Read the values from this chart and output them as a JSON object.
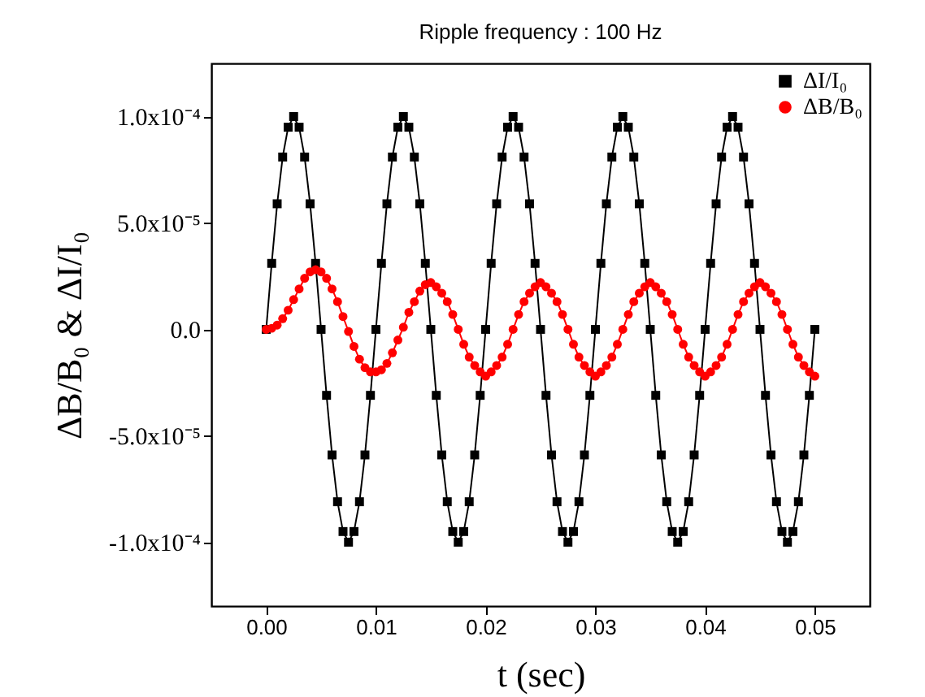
{
  "chart_data": {
    "type": "line",
    "title": "Ripple frequency : 100 Hz",
    "xlabel": "t (sec)",
    "ylabel": "ΔB/B₀ & ΔI/I₀",
    "x": [
      0,
      0.0005,
      0.001,
      0.0015,
      0.002,
      0.0025,
      0.003,
      0.0035,
      0.004,
      0.0045,
      0.005,
      0.0055,
      0.006,
      0.0065,
      0.007,
      0.0075,
      0.008,
      0.0085,
      0.009,
      0.0095,
      0.01,
      0.0105,
      0.011,
      0.0115,
      0.012,
      0.0125,
      0.013,
      0.0135,
      0.014,
      0.0145,
      0.015,
      0.0155,
      0.016,
      0.0165,
      0.017,
      0.0175,
      0.018,
      0.0185,
      0.019,
      0.0195,
      0.02,
      0.0205,
      0.021,
      0.0215,
      0.022,
      0.0225,
      0.023,
      0.0235,
      0.024,
      0.0245,
      0.025,
      0.0255,
      0.026,
      0.0265,
      0.027,
      0.0275,
      0.028,
      0.0285,
      0.029,
      0.0295,
      0.03,
      0.0305,
      0.031,
      0.0315,
      0.032,
      0.0325,
      0.033,
      0.0335,
      0.034,
      0.0345,
      0.035,
      0.0355,
      0.036,
      0.0365,
      0.037,
      0.0375,
      0.038,
      0.0385,
      0.039,
      0.0395,
      0.04,
      0.0405,
      0.041,
      0.0415,
      0.042,
      0.0425,
      0.043,
      0.0435,
      0.044,
      0.0445,
      0.045,
      0.0455,
      0.046,
      0.0465,
      0.047,
      0.0475,
      0.048,
      0.0485,
      0.049,
      0.0495,
      0.05
    ],
    "series": [
      {
        "name": "ΔI/I₀",
        "color": "#000000",
        "marker": "square",
        "values": [
          0,
          3.1e-05,
          5.9e-05,
          8.1e-05,
          9.5e-05,
          0.0001,
          9.5e-05,
          8.1e-05,
          5.9e-05,
          3.1e-05,
          0,
          -3.1e-05,
          -5.9e-05,
          -8.1e-05,
          -9.5e-05,
          -0.0001,
          -9.5e-05,
          -8.1e-05,
          -5.9e-05,
          -3.1e-05,
          0,
          3.1e-05,
          5.9e-05,
          8.1e-05,
          9.5e-05,
          0.0001,
          9.5e-05,
          8.1e-05,
          5.9e-05,
          3.1e-05,
          0,
          -3.1e-05,
          -5.9e-05,
          -8.1e-05,
          -9.5e-05,
          -0.0001,
          -9.5e-05,
          -8.1e-05,
          -5.9e-05,
          -3.1e-05,
          0,
          3.1e-05,
          5.9e-05,
          8.1e-05,
          9.5e-05,
          0.0001,
          9.5e-05,
          8.1e-05,
          5.9e-05,
          3.1e-05,
          0,
          -3.1e-05,
          -5.9e-05,
          -8.1e-05,
          -9.5e-05,
          -0.0001,
          -9.5e-05,
          -8.1e-05,
          -5.9e-05,
          -3.1e-05,
          0,
          3.1e-05,
          5.9e-05,
          8.1e-05,
          9.5e-05,
          0.0001,
          9.5e-05,
          8.1e-05,
          5.9e-05,
          3.1e-05,
          0,
          -3.1e-05,
          -5.9e-05,
          -8.1e-05,
          -9.5e-05,
          -0.0001,
          -9.5e-05,
          -8.1e-05,
          -5.9e-05,
          -3.1e-05,
          0,
          3.1e-05,
          5.9e-05,
          8.1e-05,
          9.5e-05,
          0.0001,
          9.5e-05,
          8.1e-05,
          5.9e-05,
          3.1e-05,
          0,
          -3.1e-05,
          -5.9e-05,
          -8.1e-05,
          -9.5e-05,
          -0.0001,
          -9.5e-05,
          -8.1e-05,
          -5.9e-05,
          -3.1e-05,
          0
        ]
      },
      {
        "name": "ΔB/B₀",
        "color": "#ff0000",
        "marker": "circle",
        "values": [
          0,
          5e-07,
          2e-06,
          5e-06,
          9e-06,
          1.4e-05,
          1.9e-05,
          2.4e-05,
          2.7e-05,
          2.8e-05,
          2.7e-05,
          2.4e-05,
          1.9e-05,
          1.3e-05,
          6e-06,
          -1e-06,
          -8e-06,
          -1.4e-05,
          -1.8e-05,
          -2e-05,
          -2e-05,
          -1.9e-05,
          -1.6e-05,
          -1.1e-05,
          -5e-06,
          1e-06,
          8e-06,
          1.3e-05,
          1.8e-05,
          2.1e-05,
          2.2e-05,
          2e-05,
          1.7e-05,
          1.3e-05,
          7e-06,
          0,
          -7e-06,
          -1.3e-05,
          -1.7e-05,
          -2e-05,
          -2.2e-05,
          -2e-05,
          -1.7e-05,
          -1.3e-05,
          -7e-06,
          0,
          7e-06,
          1.3e-05,
          1.7e-05,
          2e-05,
          2.2e-05,
          2e-05,
          1.7e-05,
          1.3e-05,
          7e-06,
          0,
          -7e-06,
          -1.3e-05,
          -1.7e-05,
          -2e-05,
          -2.2e-05,
          -2e-05,
          -1.7e-05,
          -1.3e-05,
          -7e-06,
          0,
          7e-06,
          1.3e-05,
          1.7e-05,
          2e-05,
          2.2e-05,
          2e-05,
          1.7e-05,
          1.3e-05,
          7e-06,
          0,
          -7e-06,
          -1.3e-05,
          -1.7e-05,
          -2e-05,
          -2.2e-05,
          -2e-05,
          -1.7e-05,
          -1.3e-05,
          -7e-06,
          0,
          7e-06,
          1.3e-05,
          1.7e-05,
          2e-05,
          2.2e-05,
          2e-05,
          1.7e-05,
          1.3e-05,
          7e-06,
          0,
          -7e-06,
          -1.3e-05,
          -1.7e-05,
          -2e-05,
          -2.2e-05
        ]
      }
    ],
    "xlim": [
      -0.005,
      0.055
    ],
    "xticks": [
      {
        "value": 0,
        "label": "0.00"
      },
      0.01,
      0.02,
      0.03,
      0.04,
      0.05
    ],
    "ylim": [
      -0.00013,
      0.000125
    ],
    "yticks": [
      {
        "value": -0.0001,
        "label": "-1.0x10⁻⁴"
      },
      {
        "value": -5e-05,
        "label": "-5.0x10⁻⁵"
      },
      {
        "value": 0,
        "label": "0.0"
      },
      {
        "value": 5e-05,
        "label": "5.0x10⁻⁵"
      },
      {
        "value": 0.0001,
        "label": "1.0x10⁻⁴"
      }
    ],
    "legend": "top right",
    "line_style": "solid",
    "grid": false
  }
}
